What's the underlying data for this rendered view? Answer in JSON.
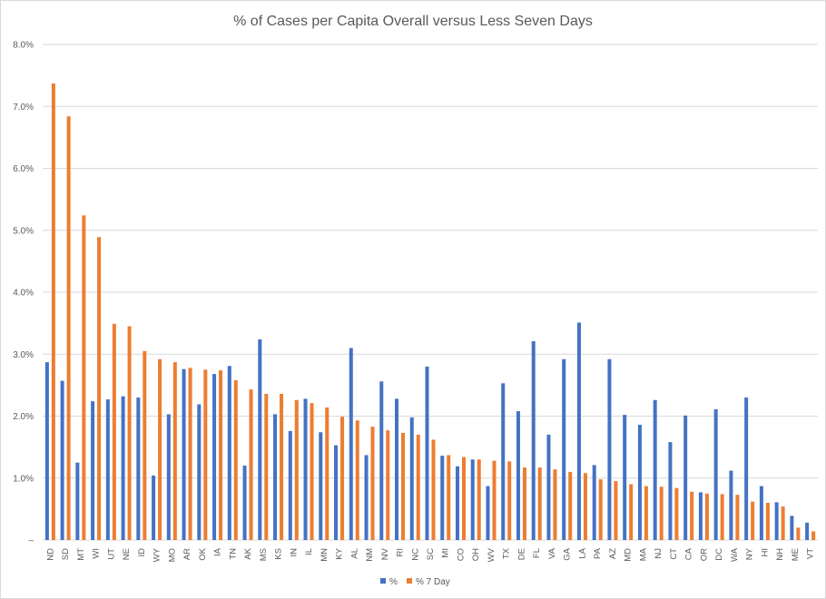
{
  "chart_data": {
    "type": "bar",
    "title": "% of Cases per Capita Overall versus Less Seven Days",
    "xlabel": "",
    "ylabel": "",
    "ylim": [
      0,
      8
    ],
    "y_ticks": [
      "–",
      "1.0%",
      "2.0%",
      "3.0%",
      "4.0%",
      "5.0%",
      "6.0%",
      "7.0%",
      "8.0%"
    ],
    "grid": true,
    "legend_position": "bottom",
    "categories": [
      "ND",
      "SD",
      "MT",
      "WI",
      "UT",
      "NE",
      "ID",
      "WY",
      "MO",
      "AR",
      "OK",
      "IA",
      "TN",
      "AK",
      "MS",
      "KS",
      "IN",
      "IL",
      "MN",
      "KY",
      "AL",
      "NM",
      "NV",
      "RI",
      "NC",
      "SC",
      "MI",
      "CO",
      "OH",
      "WV",
      "TX",
      "DE",
      "FL",
      "VA",
      "GA",
      "LA",
      "PA",
      "AZ",
      "MD",
      "MA",
      "NJ",
      "CT",
      "CA",
      "OR",
      "DC",
      "WA",
      "NY",
      "HI",
      "NH",
      "ME",
      "VT"
    ],
    "series": [
      {
        "name": "%",
        "color": "#4472c4",
        "values": [
          2.87,
          2.57,
          1.25,
          2.24,
          2.27,
          2.32,
          2.3,
          1.04,
          2.03,
          2.76,
          2.19,
          2.68,
          2.81,
          1.2,
          3.24,
          2.03,
          1.76,
          2.28,
          1.74,
          1.53,
          3.1,
          1.37,
          2.56,
          2.28,
          1.98,
          2.8,
          1.36,
          1.19,
          1.3,
          0.87,
          2.53,
          2.08,
          3.21,
          1.7,
          2.92,
          3.51,
          1.21,
          2.92,
          2.02,
          1.86,
          2.26,
          1.58,
          2.01,
          0.77,
          2.11,
          1.12,
          2.3,
          0.87,
          0.61,
          0.39,
          0.28
        ]
      },
      {
        "name": "% 7 Day",
        "color": "#ed7d31",
        "values": [
          7.37,
          6.84,
          5.24,
          4.89,
          3.49,
          3.45,
          3.05,
          2.92,
          2.87,
          2.78,
          2.75,
          2.74,
          2.58,
          2.43,
          2.36,
          2.36,
          2.26,
          2.21,
          2.14,
          1.99,
          1.93,
          1.83,
          1.77,
          1.73,
          1.7,
          1.62,
          1.37,
          1.34,
          1.3,
          1.28,
          1.27,
          1.17,
          1.17,
          1.14,
          1.1,
          1.08,
          0.98,
          0.95,
          0.9,
          0.87,
          0.86,
          0.84,
          0.78,
          0.75,
          0.74,
          0.73,
          0.62,
          0.6,
          0.54,
          0.2,
          0.14
        ]
      }
    ]
  }
}
